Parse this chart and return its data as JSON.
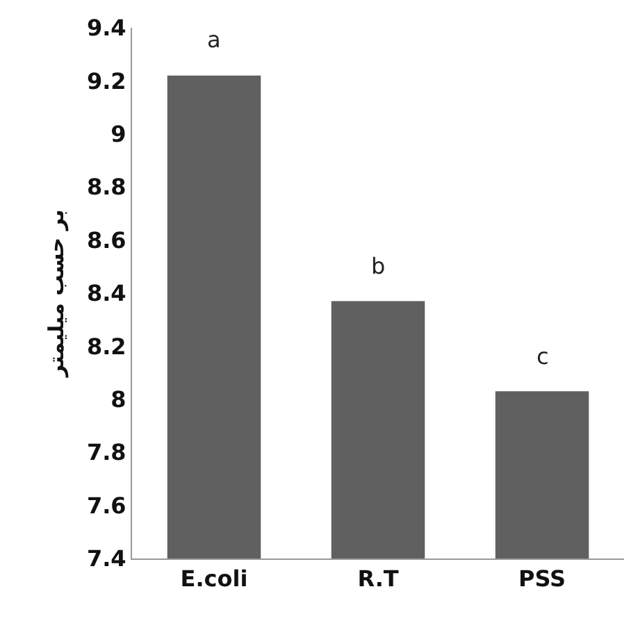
{
  "chart_data": {
    "type": "bar",
    "ylabel": "بر حسب میلیمتر",
    "categories": [
      "E.coli",
      "R.T",
      "PSS"
    ],
    "values": [
      9.22,
      8.37,
      8.03
    ],
    "color": "#606060",
    "ylim": [
      7.4,
      9.4
    ],
    "yticks": [
      7.4,
      7.6,
      7.8,
      8,
      8.2,
      8.4,
      8.6,
      8.8,
      9,
      9.2,
      9.4
    ],
    "annotations": [
      {
        "text": "a",
        "x": "E.coli",
        "y": 9.22
      },
      {
        "text": "b",
        "x": "R.T",
        "y": 8.37
      },
      {
        "text": "c",
        "x": "PSS",
        "y": 8.03
      }
    ]
  }
}
